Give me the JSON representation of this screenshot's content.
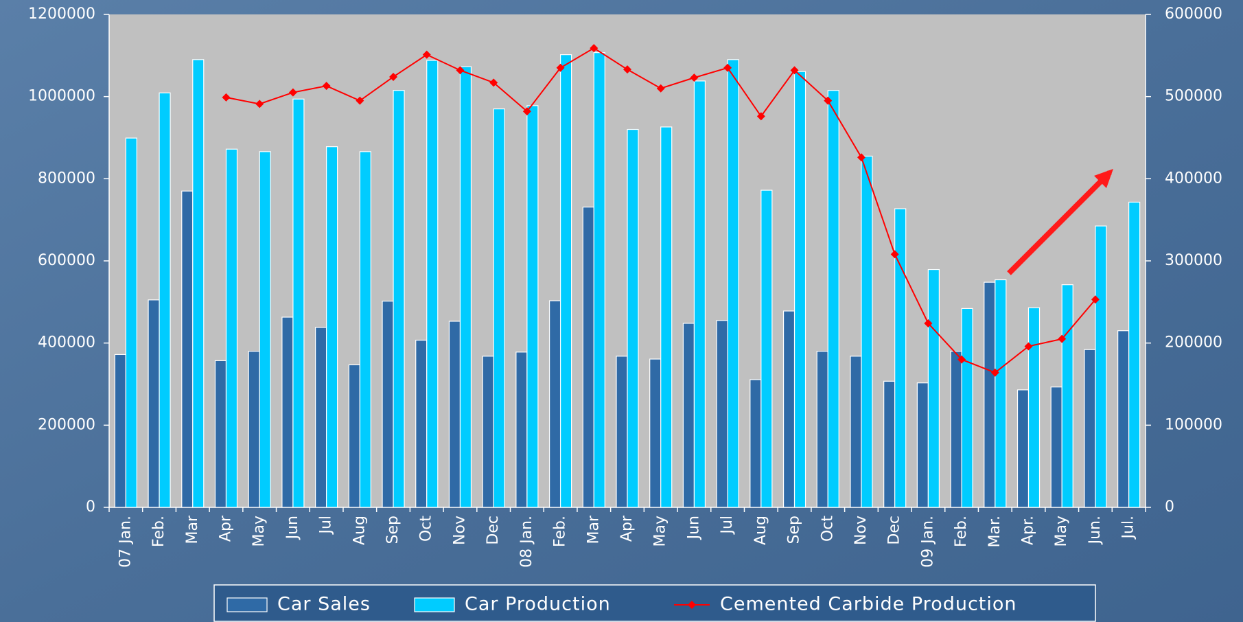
{
  "chart_data": {
    "type": "bar",
    "categories": [
      "07 Jan.",
      "Feb.",
      "Mar",
      "Apr",
      "May",
      "Jun",
      "Jul",
      "Aug",
      "Sep",
      "Oct",
      "Nov",
      "Dec",
      "08 Jan.",
      "Feb.",
      "Mar",
      "Apr",
      "May",
      "Jun",
      "Jul",
      "Aug",
      "Sep",
      "Oct",
      "Nov",
      "Dec",
      "09 Jan.",
      "Feb.",
      "Mar.",
      "Apr.",
      "May",
      "Jun.",
      "Jul."
    ],
    "series": [
      {
        "name": "Car Sales",
        "type": "bar",
        "color": "#2f6aa6",
        "values": [
          372000,
          505000,
          770000,
          357000,
          380000,
          463000,
          438000,
          347000,
          502000,
          407000,
          453000,
          368000,
          378000,
          503000,
          731000,
          368000,
          361000,
          448000,
          455000,
          311000,
          478000,
          380000,
          368000,
          307000,
          303000,
          380000,
          548000,
          286000,
          293000,
          384000,
          430000
        ]
      },
      {
        "name": "Car Production",
        "type": "bar",
        "color": "#00ccff",
        "values": [
          899000,
          1009000,
          1090000,
          872000,
          866000,
          994000,
          878000,
          866000,
          1015000,
          1088000,
          1073000,
          970000,
          978000,
          1102000,
          1107000,
          920000,
          926000,
          1038000,
          1090000,
          772000,
          1061000,
          1015000,
          855000,
          727000,
          579000,
          484000,
          554000,
          486000,
          542000,
          685000,
          743000
        ]
      },
      {
        "name": "Cemented Carbide Production",
        "type": "line",
        "axis": "y2",
        "color": "#ff0000",
        "values": [
          null,
          null,
          null,
          499000,
          491000,
          505000,
          513000,
          495000,
          524000,
          551000,
          532000,
          517000,
          482000,
          535000,
          559000,
          533000,
          510000,
          523000,
          535000,
          476000,
          532000,
          495000,
          426000,
          308000,
          224000,
          180000,
          164000,
          196000,
          205000,
          253000,
          null
        ]
      }
    ],
    "ylim": [
      0,
      1200000
    ],
    "yticks": [
      0,
      200000,
      400000,
      600000,
      800000,
      1000000,
      1200000
    ],
    "y2lim": [
      0,
      600000
    ],
    "y2ticks": [
      0,
      100000,
      200000,
      300000,
      400000,
      500000,
      600000
    ],
    "legend": "bottom"
  }
}
